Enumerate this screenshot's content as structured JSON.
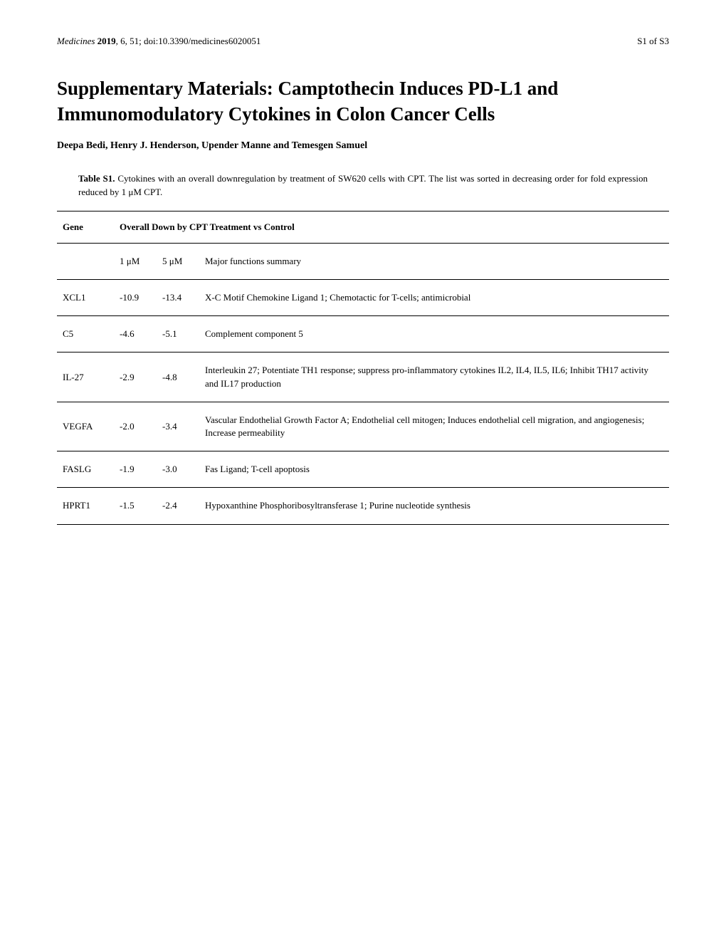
{
  "header": {
    "journal_name": "Medicines",
    "year": "2019",
    "volume_issue": ", 6, 51; ",
    "doi": "doi:10.3390/medicines6020051",
    "page_number": "S1 of S3"
  },
  "title": "Supplementary Materials: Camptothecin Induces PD-L1 and Immunomodulatory Cytokines in Colon Cancer Cells",
  "authors": "Deepa Bedi, Henry J. Henderson, Upender Manne and Temesgen Samuel",
  "table": {
    "label": "Table S1.",
    "caption": " Cytokines with an overall downregulation by treatment of SW620 cells with CPT. The list was sorted in decreasing order for fold expression reduced by 1 μM CPT.",
    "header_gene": "Gene",
    "header_main": "Overall Down by CPT Treatment vs Control",
    "subheader_1um": "1 μM",
    "subheader_5um": "5 μM",
    "subheader_func": "Major functions summary",
    "rows": [
      {
        "gene": "XCL1",
        "val_1um": "-10.9",
        "val_5um": "-13.4",
        "func": "X-C Motif Chemokine Ligand 1; Chemotactic for T-cells; antimicrobial"
      },
      {
        "gene": "C5",
        "val_1um": "-4.6",
        "val_5um": "-5.1",
        "func": "Complement component 5"
      },
      {
        "gene": "IL-27",
        "val_1um": "-2.9",
        "val_5um": "-4.8",
        "func": "Interleukin 27; Potentiate TH1 response; suppress pro-inflammatory cytokines IL2, IL4, IL5, IL6; Inhibit TH17 activity and IL17 production"
      },
      {
        "gene": "VEGFA",
        "val_1um": "-2.0",
        "val_5um": "-3.4",
        "func": "Vascular Endothelial Growth Factor A; Endothelial cell mitogen; Induces endothelial cell migration, and angiogenesis; Increase permeability"
      },
      {
        "gene": "FASLG",
        "val_1um": "-1.9",
        "val_5um": "-3.0",
        "func": "Fas Ligand; T-cell apoptosis"
      },
      {
        "gene": "HPRT1",
        "val_1um": "-1.5",
        "val_5um": "-2.4",
        "func": "Hypoxanthine Phosphoribosyltransferase 1; Purine nucleotide synthesis"
      }
    ]
  }
}
